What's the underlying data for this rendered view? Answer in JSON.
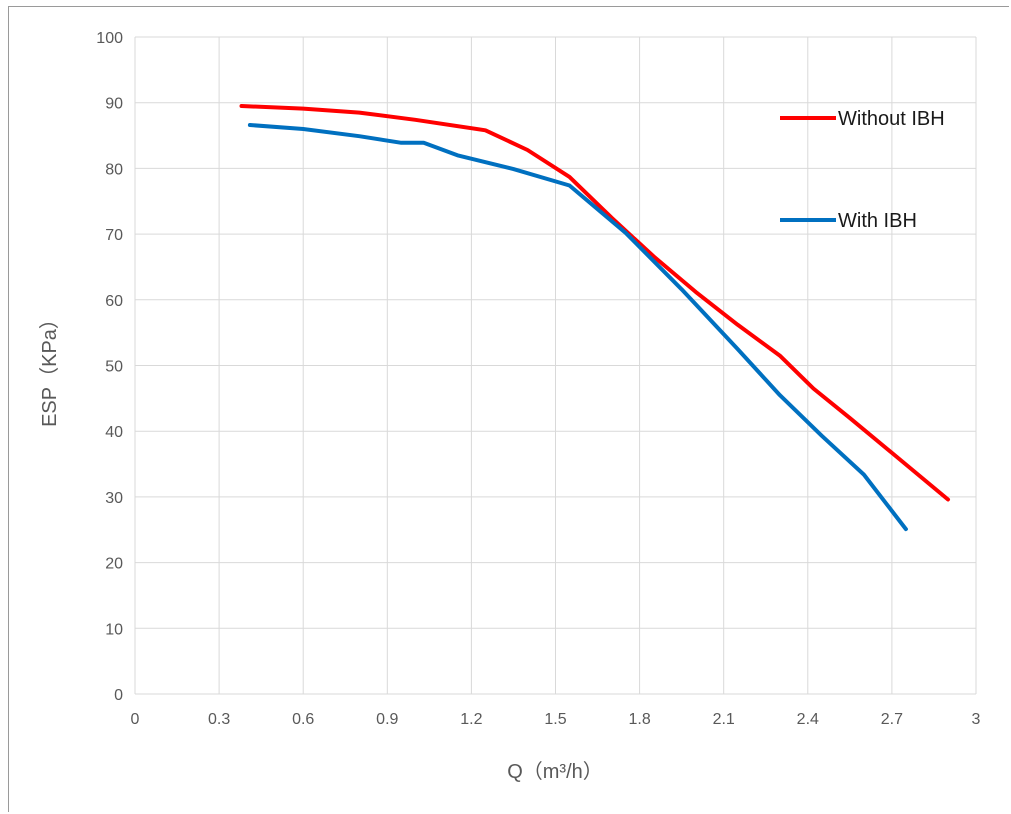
{
  "chart_data": {
    "type": "line",
    "xlabel": "Q（m³/h）",
    "ylabel": "ESP（KPa）",
    "xlim": [
      0,
      3
    ],
    "ylim": [
      0,
      100
    ],
    "x_ticks": [
      "0",
      "0.3",
      "0.6",
      "0.9",
      "1.2",
      "1.5",
      "1.8",
      "2.1",
      "2.4",
      "2.7",
      "3"
    ],
    "y_ticks": [
      "0",
      "10",
      "20",
      "30",
      "40",
      "50",
      "60",
      "70",
      "80",
      "90",
      "100"
    ],
    "grid": true,
    "legend_position": "right",
    "series": [
      {
        "name": "Without IBH",
        "color": "#ff0000",
        "points": [
          [
            0.38,
            89.5
          ],
          [
            0.6,
            89.1
          ],
          [
            0.8,
            88.5
          ],
          [
            1.0,
            87.4
          ],
          [
            1.25,
            85.8
          ],
          [
            1.4,
            82.8
          ],
          [
            1.55,
            78.7
          ],
          [
            1.7,
            72.5
          ],
          [
            1.85,
            66.6
          ],
          [
            2.0,
            61.2
          ],
          [
            2.15,
            56.2
          ],
          [
            2.3,
            51.5
          ],
          [
            2.42,
            46.5
          ],
          [
            2.55,
            42.0
          ],
          [
            2.72,
            36.0
          ],
          [
            2.9,
            29.6
          ]
        ]
      },
      {
        "name": "With IBH",
        "color": "#0070c0",
        "points": [
          [
            0.41,
            86.6
          ],
          [
            0.6,
            86.0
          ],
          [
            0.8,
            84.9
          ],
          [
            0.95,
            83.9
          ],
          [
            1.03,
            83.9
          ],
          [
            1.15,
            82.0
          ],
          [
            1.35,
            79.9
          ],
          [
            1.55,
            77.4
          ],
          [
            1.75,
            70.2
          ],
          [
            1.95,
            61.6
          ],
          [
            2.15,
            52.5
          ],
          [
            2.3,
            45.5
          ],
          [
            2.45,
            39.3
          ],
          [
            2.6,
            33.4
          ],
          [
            2.75,
            25.1
          ]
        ]
      }
    ]
  }
}
